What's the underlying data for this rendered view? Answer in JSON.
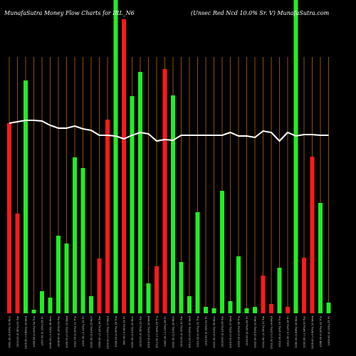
{
  "chart_data": {
    "type": "bar",
    "title": "MunafaSutra  Money Flow  Charts for IRL_N6",
    "subtitle": "(Unsec Red Ncd 10.0% Sr. V) MunafaSutra.com",
    "categories": [
      "1002.00 (0.00%) 01 Mon",
      "1010.00 (0.80%) 02 Tue",
      "1005.50 (-0.45%) 03 Wed",
      "1005.50 (0.00%) 04 Thu",
      "1007.00 (0.15%) 05 Fri",
      "1006.00 (-0.10%) 08 Mon",
      "1008.00 (0.20%) 09 Tue",
      "1009.00 (0.10%) 10 Wed",
      "1012.00 (0.30%) 11 Thu",
      "1010.00 (-0.20%) 12 Fri",
      "1010.00 (0.00%) 15 Mon",
      "1008.00 (-0.20%) 16 Tue",
      "1000.00 (-0.79%) 17 Wed",
      "1025.00 (2.50%) 18 Thu",
      "990.00 (-3.41%) 19 Fri",
      "1010.00 (2.02%) 22 Mon",
      "1015.00 (0.50%) 23 Tue",
      "1016.00 (0.10%) 24 Wed",
      "1012.00 (-0.39%) 25 Thu",
      "1000.00 (-1.19%) 26 Fri",
      "1010.00 (1.00%) 29 Mon",
      "1012.00 (0.20%) 30 Tue",
      "1012.00 (0.00%) 31 Wed",
      "1013.00 (0.10%) 01 Thu",
      "1013.00 (0.00%) 02 Fri",
      "1013.00 (0.00%) 05 Mon",
      "1014.00 (0.10%) 06 Tue",
      "1015.00 (0.10%) 07 Wed",
      "1015.00 (0.00%) 08 Thu",
      "1015.00 (0.00%) 09 Fri",
      "1015.00 (0.00%) 12 Mon",
      "1012.00 (-0.30%) 13 Tue",
      "1011.00 (-0.10%) 14 Wed",
      "1012.00 (0.10%) 15 Thu",
      "1011.00 (-0.10%) 16 Fri",
      "1030.00 (1.88%) 19 Mon",
      "1010.00 (-1.94%) 20 Tue",
      "1005.00 (-0.50%) 21 Wed",
      "1008.00 (0.30%) 22 Thu",
      "1009.00 (0.10%) 23 Fri"
    ],
    "values": [
      267,
      140,
      327,
      5,
      31,
      22,
      109,
      98,
      219,
      204,
      24,
      77,
      272,
      440,
      413,
      305,
      339,
      42,
      66,
      343,
      306,
      72,
      24,
      142,
      9,
      7,
      172,
      17,
      80,
      7,
      9,
      53,
      13,
      64,
      9,
      440,
      78,
      220,
      155,
      15
    ],
    "bar_colors": [
      "#ff1a1a",
      "#ff1a1a",
      "#22ee22",
      "#22ee22",
      "#22ee22",
      "#22ee22",
      "#22ee22",
      "#22ee22",
      "#22ee22",
      "#22ee22",
      "#22ee22",
      "#ff1a1a",
      "#ff1a1a",
      "#22ee22",
      "#ff1a1a",
      "#22ee22",
      "#22ee22",
      "#22ee22",
      "#ff1a1a",
      "#ff1a1a",
      "#22ee22",
      "#22ee22",
      "#22ee22",
      "#22ee22",
      "#22ee22",
      "#22ee22",
      "#22ee22",
      "#22ee22",
      "#22ee22",
      "#22ee22",
      "#22ee22",
      "#ff1a1a",
      "#ff1a1a",
      "#22ee22",
      "#ff1a1a",
      "#22ee22",
      "#ff1a1a",
      "#ff1a1a",
      "#22ee22",
      "#22ee22"
    ],
    "line_values": [
      267,
      269,
      271,
      271,
      270,
      264,
      260,
      260,
      263,
      259,
      257,
      250,
      250,
      249,
      245,
      250,
      254,
      252,
      242,
      244,
      243,
      250,
      250,
      250,
      250,
      250,
      250,
      254,
      249,
      249,
      247,
      256,
      254,
      242,
      254,
      249,
      251,
      251,
      250,
      250
    ],
    "line_color": "#ffffff",
    "grid_color": "#b5650d",
    "ylim": [
      0,
      440
    ]
  }
}
